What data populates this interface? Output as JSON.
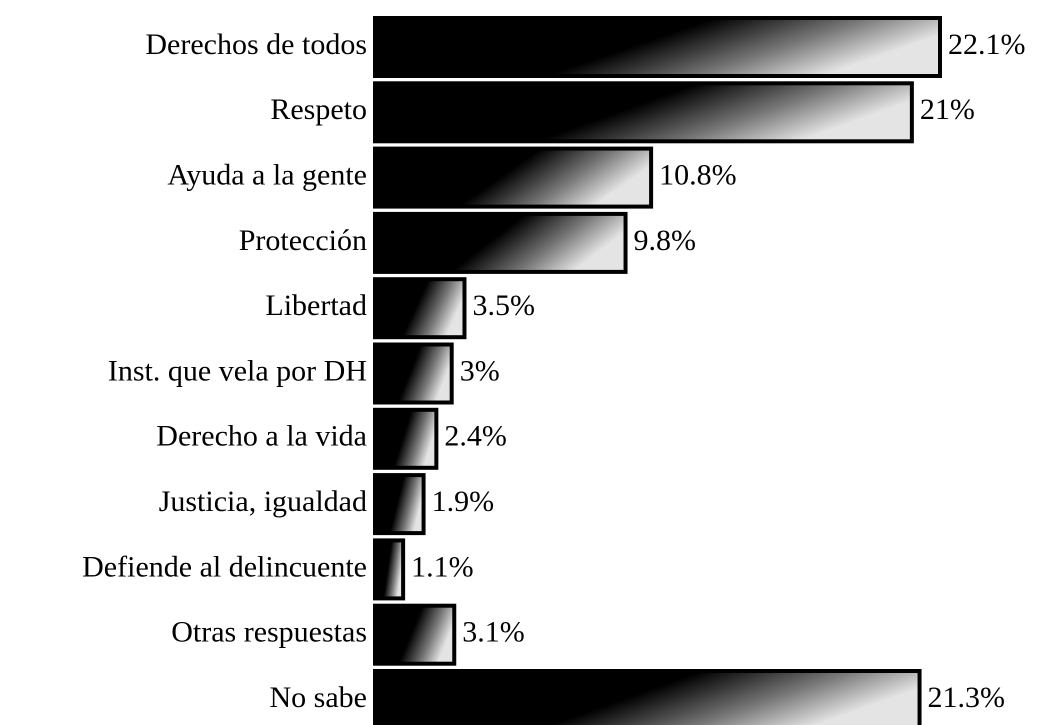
{
  "chart_data": {
    "type": "barh",
    "categories": [
      "Derechos de todos",
      "Respeto",
      "Ayuda a la gente",
      "Protección",
      "Libertad",
      "Inst. que vela  por DH",
      "Derecho a la vida",
      "Justicia, igualdad",
      "Defiende al delincuente",
      "Otras respuestas",
      "No sabe"
    ],
    "values": [
      22.1,
      21,
      10.8,
      9.8,
      3.5,
      3,
      2.4,
      1.9,
      1.1,
      3.1,
      21.3
    ],
    "value_labels": [
      "22.1%",
      "21%",
      "10.8%",
      "9.8%",
      "3.5%",
      "3%",
      "2.4%",
      "1.9%",
      "1.1%",
      "3.1%",
      "21.3%"
    ],
    "color": "#000000"
  }
}
